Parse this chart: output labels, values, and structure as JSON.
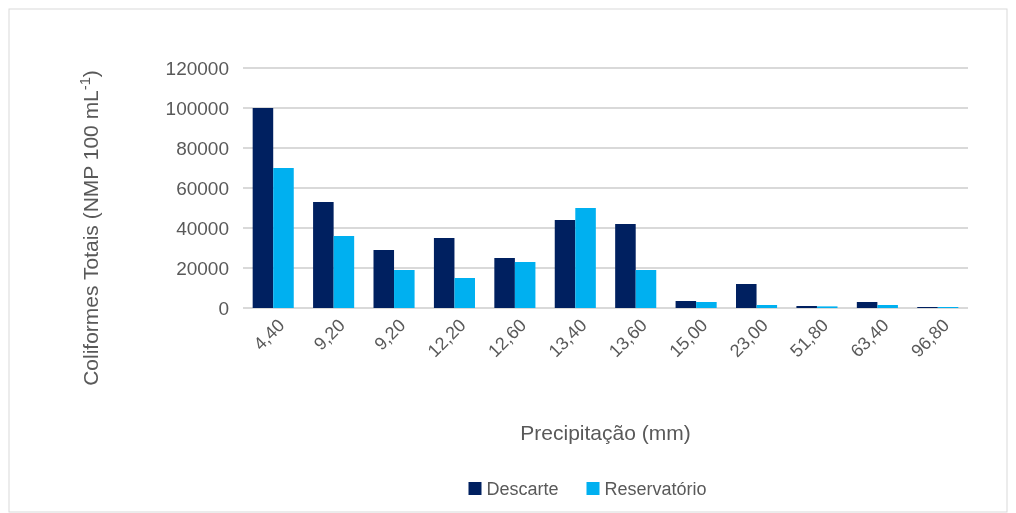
{
  "chart_data": {
    "type": "bar",
    "xlabel": "Precipitação (mm)",
    "ylabel": "Coliformes Totais (NMP 100 mL$^{-1}$)",
    "categories": [
      "4,40",
      "9,20",
      "9,20",
      "12,20",
      "12,60",
      "13,40",
      "13,60",
      "15,00",
      "23,00",
      "51,80",
      "63,40",
      "96,80"
    ],
    "series": [
      {
        "name": "Descarte",
        "color": "#002060",
        "values": [
          100000,
          53000,
          29000,
          35000,
          25000,
          44000,
          42000,
          3500,
          12000,
          1000,
          3000,
          500
        ]
      },
      {
        "name": "Reservatório",
        "color": "#00b0f0",
        "values": [
          70000,
          36000,
          19000,
          15000,
          23000,
          50000,
          19000,
          3000,
          1500,
          800,
          1500,
          500
        ]
      }
    ],
    "ylim": [
      0,
      120000
    ],
    "yticks": [
      0,
      20000,
      40000,
      60000,
      80000,
      100000,
      120000
    ],
    "grid": "y",
    "legend": "bottom"
  }
}
